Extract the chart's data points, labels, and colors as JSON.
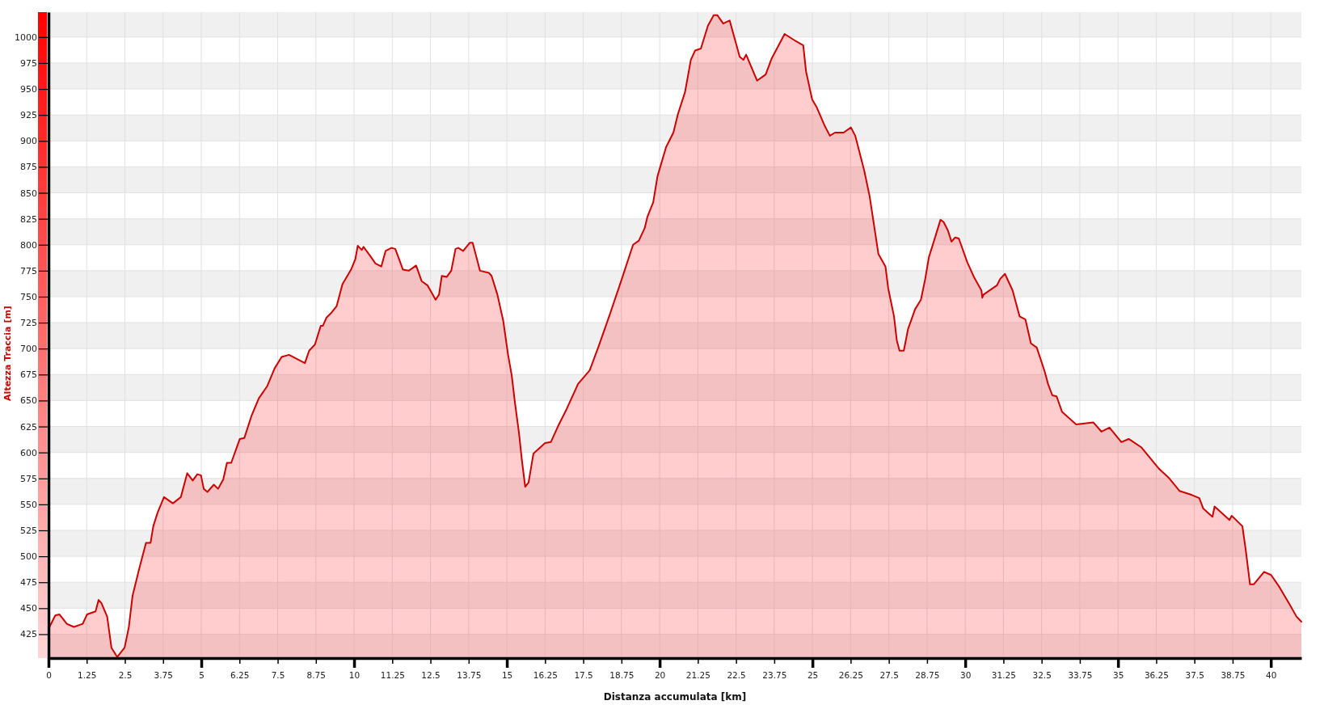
{
  "chart_data": {
    "type": "area",
    "xlabel": "Distanza accumulata [km]",
    "ylabel": "Altezza Traccia [m]",
    "color": "#cc0000",
    "grid": true,
    "xlim": [
      0,
      41
    ],
    "ylim": [
      402,
      1024
    ],
    "xticks": [
      0,
      1.25,
      2.5,
      3.75,
      5,
      6.25,
      7.5,
      8.75,
      10,
      11.25,
      12.5,
      13.75,
      15,
      16.25,
      17.5,
      18.75,
      20,
      21.25,
      22.5,
      23.75,
      25,
      26.25,
      27.5,
      28.75,
      30,
      31.25,
      32.5,
      33.75,
      35,
      36.25,
      37.5,
      38.75,
      40
    ],
    "yticks": [
      425,
      450,
      475,
      500,
      525,
      550,
      575,
      600,
      625,
      650,
      675,
      700,
      725,
      750,
      775,
      800,
      825,
      850,
      875,
      900,
      925,
      950,
      975,
      1000
    ],
    "x": [
      0,
      0.22,
      0.36,
      0.6,
      0.83,
      1.12,
      1.26,
      1.54,
      1.64,
      1.73,
      1.92,
      2.06,
      2.25,
      2.49,
      2.63,
      2.75,
      2.96,
      3.19,
      3.34,
      3.43,
      3.57,
      3.78,
      4.07,
      4.33,
      4.54,
      4.72,
      4.87,
      4.99,
      5.08,
      5.2,
      5.41,
      5.55,
      5.72,
      5.84,
      5.98,
      6.26,
      6.41,
      6.64,
      6.88,
      7.16,
      7.4,
      7.63,
      7.87,
      8.39,
      8.53,
      8.72,
      8.91,
      8.98,
      9.1,
      9.24,
      9.43,
      9.62,
      9.9,
      10.04,
      10.12,
      10.25,
      10.31,
      10.51,
      10.7,
      10.89,
      11.03,
      11.22,
      11.35,
      11.6,
      11.79,
      12.03,
      12.21,
      12.4,
      12.67,
      12.78,
      12.87,
      13.03,
      13.18,
      13.32,
      13.41,
      13.57,
      13.79,
      13.88,
      14.12,
      14.41,
      14.5,
      14.69,
      14.88,
      15.04,
      15.16,
      15.26,
      15.4,
      15.49,
      15.6,
      15.71,
      15.87,
      16.06,
      16.25,
      16.44,
      16.67,
      16.96,
      17.33,
      17.71,
      18.0,
      18.37,
      18.75,
      19.13,
      19.32,
      19.51,
      19.6,
      19.79,
      19.93,
      20.03,
      20.21,
      20.45,
      20.59,
      20.83,
      21.02,
      21.16,
      21.35,
      21.58,
      21.77,
      21.89,
      22.08,
      22.29,
      22.62,
      22.74,
      22.83,
      23.19,
      23.47,
      23.66,
      24.09,
      24.46,
      24.7,
      24.79,
      24.99,
      25.13,
      25.41,
      25.57,
      25.74,
      26.02,
      26.26,
      26.4,
      26.69,
      26.87,
      27.16,
      27.39,
      27.48,
      27.67,
      27.76,
      27.85,
      27.99,
      28.13,
      28.36,
      28.55,
      28.69,
      28.81,
      28.96,
      29.19,
      29.29,
      29.43,
      29.55,
      29.67,
      29.79,
      30.07,
      30.3,
      30.53,
      30.56,
      30.6,
      31.04,
      31.14,
      31.3,
      31.55,
      31.78,
      31.97,
      32.15,
      32.34,
      32.6,
      32.71,
      32.85,
      32.99,
      33.17,
      33.63,
      33.91,
      34.19,
      34.46,
      34.72,
      35.11,
      35.35,
      35.76,
      35.9,
      36.32,
      36.68,
      37.01,
      37.42,
      37.66,
      37.79,
      38.09,
      38.16,
      38.65,
      38.72,
      39.07,
      39.18,
      39.32,
      39.44,
      39.78,
      40.01,
      40.29,
      40.61,
      40.84,
      41.0
    ],
    "values": [
      430,
      443,
      444,
      435,
      432,
      435,
      444,
      447,
      458,
      455,
      442,
      412,
      403,
      412,
      432,
      462,
      487,
      513,
      513,
      529,
      542,
      557,
      551,
      557,
      580,
      573,
      579,
      578,
      565,
      562,
      569,
      565,
      574,
      590,
      590,
      613,
      614,
      635,
      652,
      664,
      681,
      692,
      694,
      686,
      698,
      704,
      722,
      722,
      730,
      734,
      741,
      762,
      776,
      786,
      799,
      795,
      798,
      790,
      782,
      779,
      794,
      797,
      796,
      776,
      775,
      780,
      765,
      761,
      747,
      752,
      770,
      769,
      775,
      796,
      797,
      794,
      802,
      802,
      775,
      773,
      770,
      752,
      727,
      694,
      674,
      649,
      618,
      593,
      567,
      571,
      599,
      604,
      609,
      610,
      625,
      642,
      666,
      679,
      702,
      733,
      766,
      800,
      804,
      816,
      827,
      841,
      866,
      876,
      894,
      908,
      925,
      947,
      978,
      987,
      989,
      1011,
      1021,
      1021,
      1013,
      1016,
      981,
      978,
      983,
      958,
      964,
      979,
      1003,
      996,
      992,
      967,
      940,
      933,
      914,
      905,
      908,
      908,
      913,
      905,
      872,
      847,
      791,
      779,
      758,
      731,
      708,
      698,
      698,
      719,
      738,
      747,
      767,
      788,
      802,
      824,
      822,
      814,
      803,
      807,
      806,
      783,
      768,
      756,
      749,
      752,
      761,
      767,
      772,
      756,
      731,
      728,
      705,
      701,
      678,
      666,
      655,
      654,
      639,
      627,
      628,
      629,
      620,
      624,
      610,
      613,
      605,
      600,
      585,
      575,
      563,
      559,
      556,
      546,
      538,
      548,
      535,
      539,
      529,
      506,
      473,
      473,
      485,
      482,
      470,
      454,
      442,
      437
    ]
  }
}
